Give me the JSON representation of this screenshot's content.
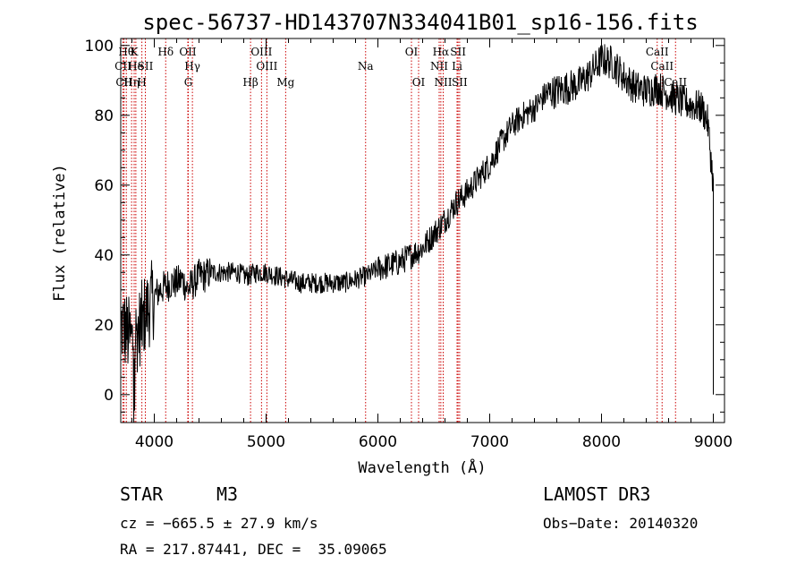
{
  "chart_data": {
    "type": "line",
    "title": "spec-56737-HD143707N334041B01_sp16-156.fits",
    "xlabel": "Wavelength (Å)",
    "ylabel": "Flux (relative)",
    "xlim": [
      3700,
      9100
    ],
    "ylim": [
      -8,
      102
    ],
    "x_ticks": [
      4000,
      5000,
      6000,
      7000,
      8000,
      9000
    ],
    "y_ticks": [
      0,
      20,
      40,
      60,
      80,
      100
    ],
    "series": [
      {
        "name": "flux",
        "x": [
          3700,
          3750,
          3800,
          3850,
          3900,
          3950,
          4000,
          4050,
          4100,
          4150,
          4200,
          4250,
          4300,
          4350,
          4400,
          4450,
          4500,
          4550,
          4600,
          4650,
          4700,
          4750,
          4800,
          4850,
          4900,
          4950,
          5000,
          5100,
          5200,
          5300,
          5400,
          5500,
          5600,
          5700,
          5800,
          5900,
          6000,
          6100,
          6200,
          6300,
          6400,
          6500,
          6600,
          6700,
          6800,
          6900,
          7000,
          7100,
          7200,
          7300,
          7400,
          7500,
          7600,
          7700,
          7800,
          7900,
          8000,
          8100,
          8200,
          8300,
          8400,
          8500,
          8600,
          8700,
          8800,
          8900,
          8950,
          9000
        ],
        "values": [
          20,
          18,
          15,
          18,
          22,
          25,
          28,
          30,
          31,
          32,
          32,
          33,
          30,
          32,
          34,
          34,
          35,
          35,
          35,
          35,
          35,
          35,
          34,
          34,
          35,
          35,
          35,
          34,
          33,
          32,
          32,
          32,
          32,
          32,
          33,
          34,
          36,
          37,
          38,
          40,
          42,
          46,
          50,
          55,
          58,
          62,
          66,
          72,
          77,
          80,
          82,
          86,
          87,
          88,
          89,
          92,
          96,
          95,
          91,
          88,
          87,
          88,
          86,
          84,
          83,
          82,
          78,
          60
        ]
      }
    ],
    "line_markers": [
      {
        "wavelength": 3750,
        "label": "Hθ",
        "row": 1
      },
      {
        "wavelength": 3820,
        "label": "K",
        "row": 1
      },
      {
        "wavelength": 4102,
        "label": "Hδ",
        "row": 1
      },
      {
        "wavelength": 4300,
        "label": "OII",
        "row": 1
      },
      {
        "wavelength": 4959,
        "label": "OIII",
        "row": 1
      },
      {
        "wavelength": 6300,
        "label": "OI",
        "row": 1
      },
      {
        "wavelength": 6563,
        "label": "Hα",
        "row": 1
      },
      {
        "wavelength": 6717,
        "label": "SII",
        "row": 1
      },
      {
        "wavelength": 8498,
        "label": "CaII",
        "row": 1
      },
      {
        "wavelength": 3720,
        "label": "CII",
        "row": 2
      },
      {
        "wavelength": 3835,
        "label": "He",
        "row": 2
      },
      {
        "wavelength": 3920,
        "label": "SII",
        "row": 2
      },
      {
        "wavelength": 4341,
        "label": "Hγ",
        "row": 2
      },
      {
        "wavelength": 5007,
        "label": "OIII",
        "row": 2
      },
      {
        "wavelength": 5890,
        "label": "Na",
        "row": 2
      },
      {
        "wavelength": 6548,
        "label": "NII",
        "row": 2
      },
      {
        "wavelength": 6708,
        "label": "Li",
        "row": 2
      },
      {
        "wavelength": 8542,
        "label": "CaII",
        "row": 2
      },
      {
        "wavelength": 3730,
        "label": "CII",
        "row": 3
      },
      {
        "wavelength": 3797,
        "label": "Hη",
        "row": 3
      },
      {
        "wavelength": 3889,
        "label": "H",
        "row": 3
      },
      {
        "wavelength": 4304,
        "label": "G",
        "row": 3
      },
      {
        "wavelength": 4861,
        "label": "Hβ",
        "row": 3
      },
      {
        "wavelength": 5175,
        "label": "Mg",
        "row": 3
      },
      {
        "wavelength": 6364,
        "label": "OI",
        "row": 3
      },
      {
        "wavelength": 6584,
        "label": "NII",
        "row": 3
      },
      {
        "wavelength": 6731,
        "label": "SII",
        "row": 3
      },
      {
        "wavelength": 8662,
        "label": "CaII",
        "row": 3
      }
    ]
  },
  "info": {
    "object_class": "STAR",
    "subclass": "M3",
    "survey": "LAMOST DR3",
    "cz": "cz = −665.5 ± 27.9 km/s",
    "obs_date": "Obs−Date: 20140320",
    "coords": "RA = 217.87441, DEC =  35.09065"
  }
}
